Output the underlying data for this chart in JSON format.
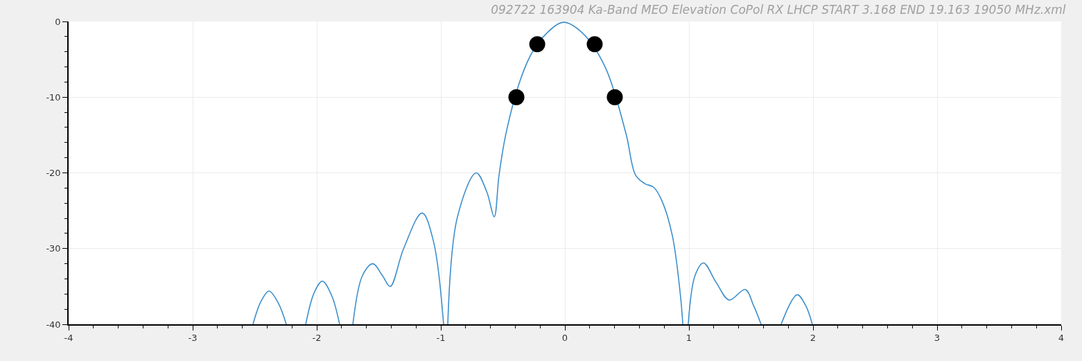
{
  "chart_data": {
    "type": "line",
    "title": "092722 163904 Ka-Band MEO Elevation CoPol RX LHCP START 3.168 END 19.163 19050 MHz.xml",
    "series": [
      {
        "color": "#3d8fcc",
        "x": [
          -2.514,
          -2.45,
          -2.385,
          -2.31,
          -2.246,
          null,
          -2.089,
          -2.02,
          -1.955,
          -1.88,
          -1.816,
          null,
          -1.709,
          -1.63,
          -1.547,
          -1.47,
          -1.408,
          -1.3,
          -1.151,
          -1.06,
          -0.978,
          null,
          -0.944,
          -0.866,
          -0.715,
          -0.63,
          -0.57,
          -0.531,
          -0.475,
          -0.363,
          -0.268,
          -0.156,
          -0.011,
          0.14,
          0.324,
          0.492,
          0.57,
          0.642,
          0.715,
          0.782,
          0.866,
          0.933,
          0.95,
          null,
          0.994,
          1.05,
          1.117,
          1.22,
          1.324,
          1.453,
          1.52,
          1.581,
          null,
          1.743,
          1.872,
          1.94,
          1.994
        ],
        "values": [
          -40,
          -37,
          -35.6,
          -37.2,
          -40,
          null,
          -40,
          -35.8,
          -34.3,
          -36.2,
          -40,
          null,
          -40,
          -33.5,
          -32.0,
          -33.6,
          -35.0,
          -30,
          -25.3,
          -29,
          -40,
          null,
          -40,
          -25.8,
          -20.0,
          -22.5,
          -25.8,
          -20.3,
          -14.8,
          -7.9,
          -4.2,
          -1.7,
          -0.1,
          -1.5,
          -6.0,
          -14.8,
          -20.3,
          -21.4,
          -21.9,
          -23.7,
          -28.3,
          -36.5,
          -40,
          null,
          -40,
          -33.5,
          -31.9,
          -34.5,
          -36.8,
          -35.4,
          -37.5,
          -40,
          null,
          -40,
          -36.1,
          -37.5,
          -40
        ]
      },
      {
        "type": "scatter",
        "color": "#000000",
        "marker": "circle",
        "x": [
          -0.391,
          -0.223,
          0.24,
          0.402
        ],
        "values": [
          -10,
          -3,
          -3,
          -10
        ]
      }
    ],
    "xlim": [
      -4,
      4
    ],
    "ylim": [
      -40,
      0
    ],
    "xticks": [
      -4,
      {
        "value": -3.8,
        "label": null
      },
      {
        "value": -3.6,
        "label": null
      },
      {
        "value": -3.4,
        "label": null
      },
      {
        "value": -3.2,
        "label": null
      },
      -3,
      {
        "value": -2.8,
        "label": null
      },
      {
        "value": -2.6,
        "label": null
      },
      {
        "value": -2.4,
        "label": null
      },
      {
        "value": -2.2,
        "label": null
      },
      -2,
      {
        "value": -1.8,
        "label": null
      },
      {
        "value": -1.6,
        "label": null
      },
      {
        "value": -1.4,
        "label": null
      },
      {
        "value": -1.2,
        "label": null
      },
      -1,
      {
        "value": -0.8,
        "label": null
      },
      {
        "value": -0.6,
        "label": null
      },
      {
        "value": -0.4,
        "label": null
      },
      {
        "value": -0.2,
        "label": null
      },
      0,
      {
        "value": 0.2,
        "label": null
      },
      {
        "value": 0.4,
        "label": null
      },
      {
        "value": 0.6,
        "label": null
      },
      {
        "value": 0.8,
        "label": null
      },
      1,
      {
        "value": 1.2,
        "label": null
      },
      {
        "value": 1.4,
        "label": null
      },
      {
        "value": 1.6,
        "label": null
      },
      {
        "value": 1.8,
        "label": null
      },
      2,
      {
        "value": 2.2,
        "label": null
      },
      {
        "value": 2.4,
        "label": null
      },
      {
        "value": 2.6,
        "label": null
      },
      {
        "value": 2.8,
        "label": null
      },
      3,
      {
        "value": 3.2,
        "label": null
      },
      {
        "value": 3.4,
        "label": null
      },
      {
        "value": 3.6,
        "label": null
      },
      {
        "value": 3.8,
        "label": null
      },
      4
    ],
    "yticks": [
      -40,
      {
        "value": -38,
        "label": null
      },
      {
        "value": -36,
        "label": null
      },
      {
        "value": -34,
        "label": null
      },
      {
        "value": -32,
        "label": null
      },
      -30,
      {
        "value": -28,
        "label": null
      },
      {
        "value": -26,
        "label": null
      },
      {
        "value": -24,
        "label": null
      },
      {
        "value": -22,
        "label": null
      },
      -20,
      {
        "value": -18,
        "label": null
      },
      {
        "value": -16,
        "label": null
      },
      {
        "value": -14,
        "label": null
      },
      {
        "value": -12,
        "label": null
      },
      -10,
      {
        "value": -8,
        "label": null
      },
      {
        "value": -6,
        "label": null
      },
      {
        "value": -4,
        "label": null
      },
      {
        "value": -2,
        "label": null
      },
      0
    ],
    "grid": true,
    "marker": "none",
    "line_style": "solid"
  }
}
